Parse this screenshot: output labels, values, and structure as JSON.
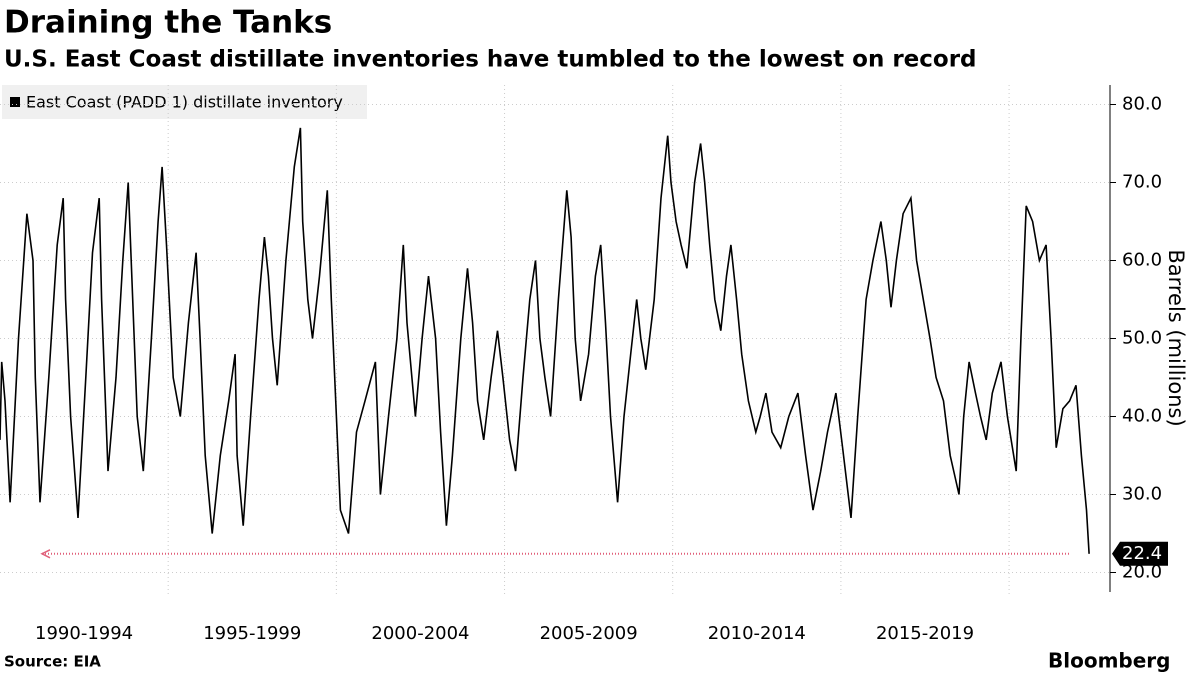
{
  "chart_data": {
    "type": "line",
    "title": "Draining the Tanks",
    "subtitle": "U.S. East Coast distillate inventories have tumbled to the lowest on record",
    "source": "Source: EIA",
    "brand": "Bloomberg",
    "y_label": "Barrels (millions)",
    "legend_position": "top-left",
    "grid": true,
    "xlim": [
      1990,
      2023
    ],
    "xticks": [
      {
        "value": 1992.5,
        "label": "1990-1994"
      },
      {
        "value": 1997.5,
        "label": "1995-1999"
      },
      {
        "value": 2002.5,
        "label": "2000-2004"
      },
      {
        "value": 2007.5,
        "label": "2005-2009"
      },
      {
        "value": 2012.5,
        "label": "2010-2014"
      },
      {
        "value": 2017.5,
        "label": "2015-2019"
      }
    ],
    "ylim": [
      17.5,
      82.5
    ],
    "yticks": [
      {
        "value": 20,
        "label": "20.0"
      },
      {
        "value": 30,
        "label": "30.0"
      },
      {
        "value": 40,
        "label": "40.0"
      },
      {
        "value": 50,
        "label": "50.0"
      },
      {
        "value": 60,
        "label": "60.0"
      },
      {
        "value": 70,
        "label": "70.0"
      },
      {
        "value": 80,
        "label": "80.0"
      }
    ],
    "x": [
      1990.0,
      1990.05,
      1990.15,
      1990.3,
      1990.55,
      1990.8,
      1990.98,
      1991.05,
      1991.19,
      1991.45,
      1991.7,
      1991.88,
      1991.95,
      1992.1,
      1992.32,
      1992.55,
      1992.75,
      1992.95,
      1993.02,
      1993.21,
      1993.45,
      1993.65,
      1993.81,
      1993.9,
      1994.08,
      1994.26,
      1994.5,
      1994.7,
      1994.82,
      1994.95,
      1995.15,
      1995.36,
      1995.6,
      1995.83,
      1995.95,
      1996.1,
      1996.31,
      1996.55,
      1996.8,
      1996.99,
      1997.05,
      1997.23,
      1997.45,
      1997.7,
      1997.86,
      1997.98,
      1998.1,
      1998.24,
      1998.5,
      1998.75,
      1998.93,
      1999.0,
      1999.15,
      1999.29,
      1999.5,
      1999.73,
      1999.85,
      2000.0,
      2000.12,
      2000.36,
      2000.6,
      2000.85,
      2001.16,
      2001.31,
      2001.55,
      2001.8,
      2001.99,
      2002.1,
      2002.35,
      2002.55,
      2002.74,
      2002.95,
      2003.1,
      2003.27,
      2003.45,
      2003.7,
      2003.9,
      2004.05,
      2004.2,
      2004.38,
      2004.6,
      2004.79,
      2004.95,
      2005.15,
      2005.33,
      2005.55,
      2005.75,
      2005.92,
      2006.05,
      2006.2,
      2006.37,
      2006.6,
      2006.85,
      2006.98,
      2007.1,
      2007.26,
      2007.5,
      2007.7,
      2007.86,
      2008.0,
      2008.15,
      2008.36,
      2008.55,
      2008.75,
      2008.93,
      2009.05,
      2009.2,
      2009.45,
      2009.65,
      2009.85,
      2009.95,
      2010.1,
      2010.25,
      2010.42,
      2010.65,
      2010.83,
      2010.95,
      2011.1,
      2011.25,
      2011.43,
      2011.6,
      2011.73,
      2011.9,
      2012.05,
      2012.25,
      2012.47,
      2012.6,
      2012.77,
      2012.95,
      2013.21,
      2013.45,
      2013.72,
      2013.95,
      2014.17,
      2014.4,
      2014.6,
      2014.85,
      2015.05,
      2015.3,
      2015.5,
      2015.75,
      2015.95,
      2016.19,
      2016.35,
      2016.49,
      2016.65,
      2016.85,
      2017.08,
      2017.25,
      2017.45,
      2017.65,
      2017.83,
      2018.05,
      2018.25,
      2018.51,
      2018.65,
      2018.81,
      2019.0,
      2019.15,
      2019.32,
      2019.5,
      2019.76,
      2019.95,
      2020.21,
      2020.35,
      2020.51,
      2020.7,
      2020.9,
      2021.1,
      2021.25,
      2021.4,
      2021.6,
      2021.8,
      2021.99,
      2022.15,
      2022.3,
      2022.38
    ],
    "series": [
      {
        "name": "East Coast (PADD 1) distillate inventory",
        "color": "#000000",
        "values": [
          37,
          47,
          42,
          29,
          50,
          66,
          60,
          45,
          29,
          45,
          62,
          68,
          55,
          40,
          27,
          45,
          61,
          68,
          55,
          33,
          45,
          60,
          70,
          60,
          40,
          33,
          50,
          65,
          72,
          62,
          45,
          40,
          52,
          61,
          50,
          35,
          25,
          35,
          42,
          48,
          35,
          26,
          40,
          55,
          63,
          58,
          50,
          44,
          60,
          72,
          77,
          65,
          55,
          50,
          58,
          69,
          55,
          40,
          28,
          25,
          38,
          42,
          47,
          30,
          40,
          50,
          62,
          52,
          40,
          50,
          58,
          50,
          38,
          26,
          35,
          50,
          59,
          52,
          42,
          37,
          45,
          51,
          45,
          37,
          33,
          45,
          55,
          60,
          50,
          45,
          40,
          55,
          69,
          63,
          50,
          42,
          48,
          58,
          62,
          52,
          40,
          29,
          40,
          48,
          55,
          50,
          46,
          55,
          68,
          76,
          70,
          65,
          62,
          59,
          70,
          75,
          70,
          62,
          55,
          51,
          58,
          62,
          55,
          48,
          42,
          38,
          40,
          43,
          38,
          36,
          40,
          43,
          35,
          28,
          33,
          38,
          43,
          36,
          27,
          40,
          55,
          60,
          65,
          60,
          54,
          60,
          66,
          68,
          60,
          55,
          50,
          45,
          42,
          35,
          30,
          40,
          47,
          43,
          40,
          37,
          43,
          47,
          40,
          33,
          50,
          67,
          65,
          60,
          62,
          50,
          36,
          41,
          42,
          44,
          35,
          28,
          22.4
        ]
      }
    ]
  }
}
